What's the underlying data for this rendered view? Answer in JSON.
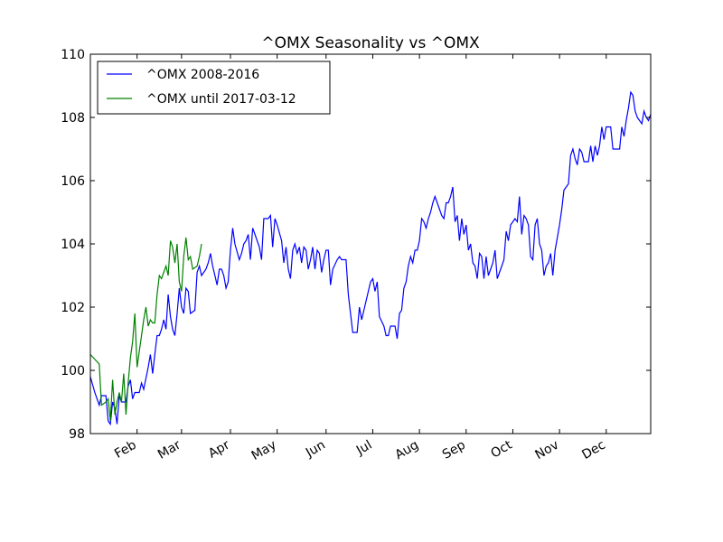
{
  "chart_data": {
    "type": "line",
    "title": "^OMX Seasonality vs ^OMX",
    "xlabel": "",
    "ylabel": "",
    "ylim": [
      98,
      110
    ],
    "yticks": [
      98,
      100,
      102,
      104,
      106,
      108,
      110
    ],
    "xlim": [
      0,
      252
    ],
    "xticks": [
      {
        "label": "Feb",
        "pos": 21
      },
      {
        "label": "Mar",
        "pos": 41
      },
      {
        "label": "Apr",
        "pos": 63
      },
      {
        "label": "May",
        "pos": 84
      },
      {
        "label": "Jun",
        "pos": 106
      },
      {
        "label": "Jul",
        "pos": 127
      },
      {
        "label": "Aug",
        "pos": 148
      },
      {
        "label": "Sep",
        "pos": 169
      },
      {
        "label": "Oct",
        "pos": 190
      },
      {
        "label": "Nov",
        "pos": 211
      },
      {
        "label": "Dec",
        "pos": 232
      }
    ],
    "legend_position": "top-left",
    "grid": false,
    "series": [
      {
        "name": "^OMX 2008-2016",
        "color": "#0000ff",
        "points": [
          [
            0,
            99.8
          ],
          [
            2,
            99.3
          ],
          [
            4,
            98.9
          ],
          [
            5,
            99.2
          ],
          [
            7,
            99.2
          ],
          [
            8,
            98.4
          ],
          [
            9,
            98.3
          ],
          [
            10,
            99.0
          ],
          [
            11,
            98.8
          ],
          [
            12,
            98.3
          ],
          [
            13,
            99.2
          ],
          [
            14,
            99.0
          ],
          [
            16,
            99.0
          ],
          [
            17,
            99.5
          ],
          [
            18,
            99.7
          ],
          [
            19,
            99.1
          ],
          [
            20,
            99.3
          ],
          [
            22,
            99.3
          ],
          [
            23,
            99.6
          ],
          [
            24,
            99.4
          ],
          [
            26,
            100.1
          ],
          [
            27,
            100.5
          ],
          [
            28,
            99.9
          ],
          [
            29,
            100.5
          ],
          [
            30,
            101.1
          ],
          [
            31,
            101.1
          ],
          [
            32,
            101.3
          ],
          [
            33,
            101.6
          ],
          [
            34,
            101.3
          ],
          [
            35,
            102.4
          ],
          [
            36,
            101.7
          ],
          [
            37,
            101.3
          ],
          [
            38,
            101.1
          ],
          [
            39,
            101.8
          ],
          [
            40,
            102.6
          ],
          [
            41,
            102.0
          ],
          [
            42,
            101.8
          ],
          [
            43,
            102.6
          ],
          [
            44,
            102.5
          ],
          [
            45,
            101.8
          ],
          [
            47,
            101.9
          ],
          [
            48,
            103.1
          ],
          [
            49,
            103.3
          ],
          [
            50,
            103.0
          ],
          [
            52,
            103.2
          ],
          [
            53,
            103.4
          ],
          [
            54,
            103.7
          ],
          [
            55,
            103.3
          ],
          [
            56,
            103.0
          ],
          [
            57,
            102.7
          ],
          [
            58,
            103.2
          ],
          [
            59,
            103.2
          ],
          [
            60,
            103.0
          ],
          [
            61,
            102.6
          ],
          [
            62,
            102.8
          ],
          [
            63,
            103.8
          ],
          [
            64,
            104.5
          ],
          [
            65,
            104.0
          ],
          [
            67,
            103.5
          ],
          [
            68,
            103.7
          ],
          [
            69,
            104.0
          ],
          [
            70,
            104.1
          ],
          [
            71,
            104.3
          ],
          [
            72,
            103.5
          ],
          [
            73,
            104.5
          ],
          [
            74,
            104.3
          ],
          [
            76,
            103.9
          ],
          [
            77,
            103.5
          ],
          [
            78,
            104.8
          ],
          [
            80,
            104.8
          ],
          [
            81,
            104.9
          ],
          [
            82,
            103.9
          ],
          [
            83,
            104.8
          ],
          [
            84,
            104.6
          ],
          [
            86,
            104.1
          ],
          [
            87,
            103.4
          ],
          [
            88,
            103.9
          ],
          [
            89,
            103.2
          ],
          [
            90,
            102.9
          ],
          [
            91,
            103.8
          ],
          [
            92,
            104.0
          ],
          [
            93,
            103.7
          ],
          [
            94,
            103.9
          ],
          [
            95,
            103.4
          ],
          [
            96,
            103.9
          ],
          [
            97,
            103.8
          ],
          [
            98,
            103.2
          ],
          [
            99,
            103.5
          ],
          [
            100,
            103.9
          ],
          [
            101,
            103.2
          ],
          [
            102,
            103.8
          ],
          [
            103,
            103.7
          ],
          [
            104,
            103.1
          ],
          [
            105,
            103.5
          ],
          [
            106,
            103.8
          ],
          [
            107,
            103.8
          ],
          [
            108,
            102.7
          ],
          [
            109,
            103.2
          ],
          [
            111,
            103.5
          ],
          [
            112,
            103.6
          ],
          [
            113,
            103.5
          ],
          [
            115,
            103.5
          ],
          [
            116,
            102.4
          ],
          [
            118,
            101.2
          ],
          [
            120,
            101.2
          ],
          [
            121,
            102.0
          ],
          [
            122,
            101.6
          ],
          [
            124,
            102.2
          ],
          [
            126,
            102.8
          ],
          [
            127,
            102.9
          ],
          [
            128,
            102.5
          ],
          [
            129,
            102.8
          ],
          [
            130,
            101.7
          ],
          [
            132,
            101.4
          ],
          [
            133,
            101.1
          ],
          [
            134,
            101.1
          ],
          [
            135,
            101.4
          ],
          [
            137,
            101.4
          ],
          [
            138,
            101.0
          ],
          [
            139,
            101.8
          ],
          [
            140,
            101.9
          ],
          [
            141,
            102.6
          ],
          [
            142,
            102.8
          ],
          [
            143,
            103.3
          ],
          [
            144,
            103.6
          ],
          [
            145,
            103.4
          ],
          [
            146,
            103.8
          ],
          [
            147,
            103.8
          ],
          [
            148,
            104.1
          ],
          [
            149,
            104.8
          ],
          [
            150,
            104.7
          ],
          [
            151,
            104.5
          ],
          [
            152,
            104.8
          ],
          [
            153,
            105.0
          ],
          [
            154,
            105.3
          ],
          [
            155,
            105.5
          ],
          [
            156,
            105.3
          ],
          [
            157,
            105.1
          ],
          [
            158,
            104.9
          ],
          [
            159,
            104.8
          ],
          [
            160,
            105.3
          ],
          [
            161,
            105.3
          ],
          [
            162,
            105.5
          ],
          [
            163,
            105.8
          ],
          [
            164,
            104.7
          ],
          [
            165,
            104.9
          ],
          [
            166,
            104.1
          ],
          [
            167,
            104.8
          ],
          [
            168,
            104.3
          ],
          [
            169,
            104.6
          ],
          [
            170,
            103.8
          ],
          [
            171,
            104.0
          ],
          [
            172,
            103.4
          ],
          [
            173,
            103.3
          ],
          [
            174,
            102.9
          ],
          [
            175,
            103.7
          ],
          [
            176,
            103.6
          ],
          [
            177,
            102.9
          ],
          [
            178,
            103.6
          ],
          [
            179,
            103.0
          ],
          [
            180,
            103.2
          ],
          [
            181,
            103.4
          ],
          [
            182,
            103.8
          ],
          [
            183,
            102.9
          ],
          [
            184,
            103.1
          ],
          [
            185,
            103.3
          ],
          [
            186,
            103.5
          ],
          [
            187,
            104.4
          ],
          [
            188,
            104.1
          ],
          [
            189,
            104.6
          ],
          [
            190,
            104.7
          ],
          [
            191,
            104.8
          ],
          [
            192,
            104.7
          ],
          [
            193,
            105.5
          ],
          [
            194,
            104.3
          ],
          [
            195,
            104.9
          ],
          [
            196,
            104.8
          ],
          [
            197,
            104.6
          ],
          [
            198,
            103.6
          ],
          [
            199,
            103.5
          ],
          [
            200,
            104.6
          ],
          [
            201,
            104.8
          ],
          [
            202,
            104.0
          ],
          [
            203,
            103.8
          ],
          [
            204,
            103.0
          ],
          [
            205,
            103.3
          ],
          [
            206,
            103.4
          ],
          [
            207,
            103.7
          ],
          [
            208,
            103.0
          ],
          [
            209,
            103.8
          ],
          [
            210,
            104.2
          ],
          [
            211,
            104.6
          ],
          [
            212,
            105.1
          ],
          [
            213,
            105.7
          ],
          [
            214,
            105.8
          ],
          [
            215,
            105.9
          ],
          [
            216,
            106.8
          ],
          [
            217,
            107.0
          ],
          [
            218,
            106.7
          ],
          [
            219,
            106.5
          ],
          [
            220,
            107.0
          ],
          [
            221,
            106.9
          ],
          [
            222,
            106.6
          ],
          [
            223,
            106.6
          ],
          [
            224,
            106.6
          ],
          [
            225,
            107.1
          ],
          [
            226,
            106.6
          ],
          [
            227,
            107.1
          ],
          [
            228,
            106.8
          ],
          [
            229,
            107.1
          ],
          [
            230,
            107.7
          ],
          [
            231,
            107.3
          ],
          [
            232,
            107.7
          ],
          [
            234,
            107.7
          ],
          [
            235,
            107.0
          ],
          [
            236,
            107.0
          ],
          [
            238,
            107.0
          ],
          [
            239,
            107.7
          ],
          [
            240,
            107.4
          ],
          [
            241,
            107.9
          ],
          [
            242,
            108.3
          ],
          [
            243,
            108.8
          ],
          [
            244,
            108.7
          ],
          [
            245,
            108.2
          ],
          [
            246,
            108.0
          ],
          [
            247,
            107.9
          ],
          [
            248,
            107.8
          ],
          [
            249,
            108.2
          ],
          [
            250,
            108.0
          ],
          [
            251,
            107.9
          ],
          [
            252,
            108.1
          ]
        ]
      },
      {
        "name": "^OMX until 2017-03-12",
        "color": "#008000",
        "points": [
          [
            0,
            100.5
          ],
          [
            4,
            100.2
          ],
          [
            5,
            98.9
          ],
          [
            7,
            99.0
          ],
          [
            8,
            99.1
          ],
          [
            9,
            98.4
          ],
          [
            10,
            99.7
          ],
          [
            11,
            98.6
          ],
          [
            12,
            99.0
          ],
          [
            13,
            99.3
          ],
          [
            14,
            99.0
          ],
          [
            15,
            99.9
          ],
          [
            16,
            98.6
          ],
          [
            17,
            99.6
          ],
          [
            18,
            100.4
          ],
          [
            19,
            100.9
          ],
          [
            20,
            101.8
          ],
          [
            21,
            100.1
          ],
          [
            22,
            100.6
          ],
          [
            23,
            101.1
          ],
          [
            24,
            101.6
          ],
          [
            25,
            102.0
          ],
          [
            26,
            101.4
          ],
          [
            27,
            101.6
          ],
          [
            28,
            101.5
          ],
          [
            29,
            101.5
          ],
          [
            30,
            102.4
          ],
          [
            31,
            103.0
          ],
          [
            32,
            102.9
          ],
          [
            33,
            103.1
          ],
          [
            34,
            103.3
          ],
          [
            35,
            103.0
          ],
          [
            36,
            104.1
          ],
          [
            37,
            103.9
          ],
          [
            38,
            103.4
          ],
          [
            39,
            104.0
          ],
          [
            40,
            102.8
          ],
          [
            41,
            102.5
          ],
          [
            42,
            103.6
          ],
          [
            43,
            104.2
          ],
          [
            44,
            103.5
          ],
          [
            45,
            103.6
          ],
          [
            46,
            103.2
          ],
          [
            48,
            103.3
          ],
          [
            49,
            103.6
          ],
          [
            50,
            104.0
          ]
        ]
      }
    ]
  }
}
